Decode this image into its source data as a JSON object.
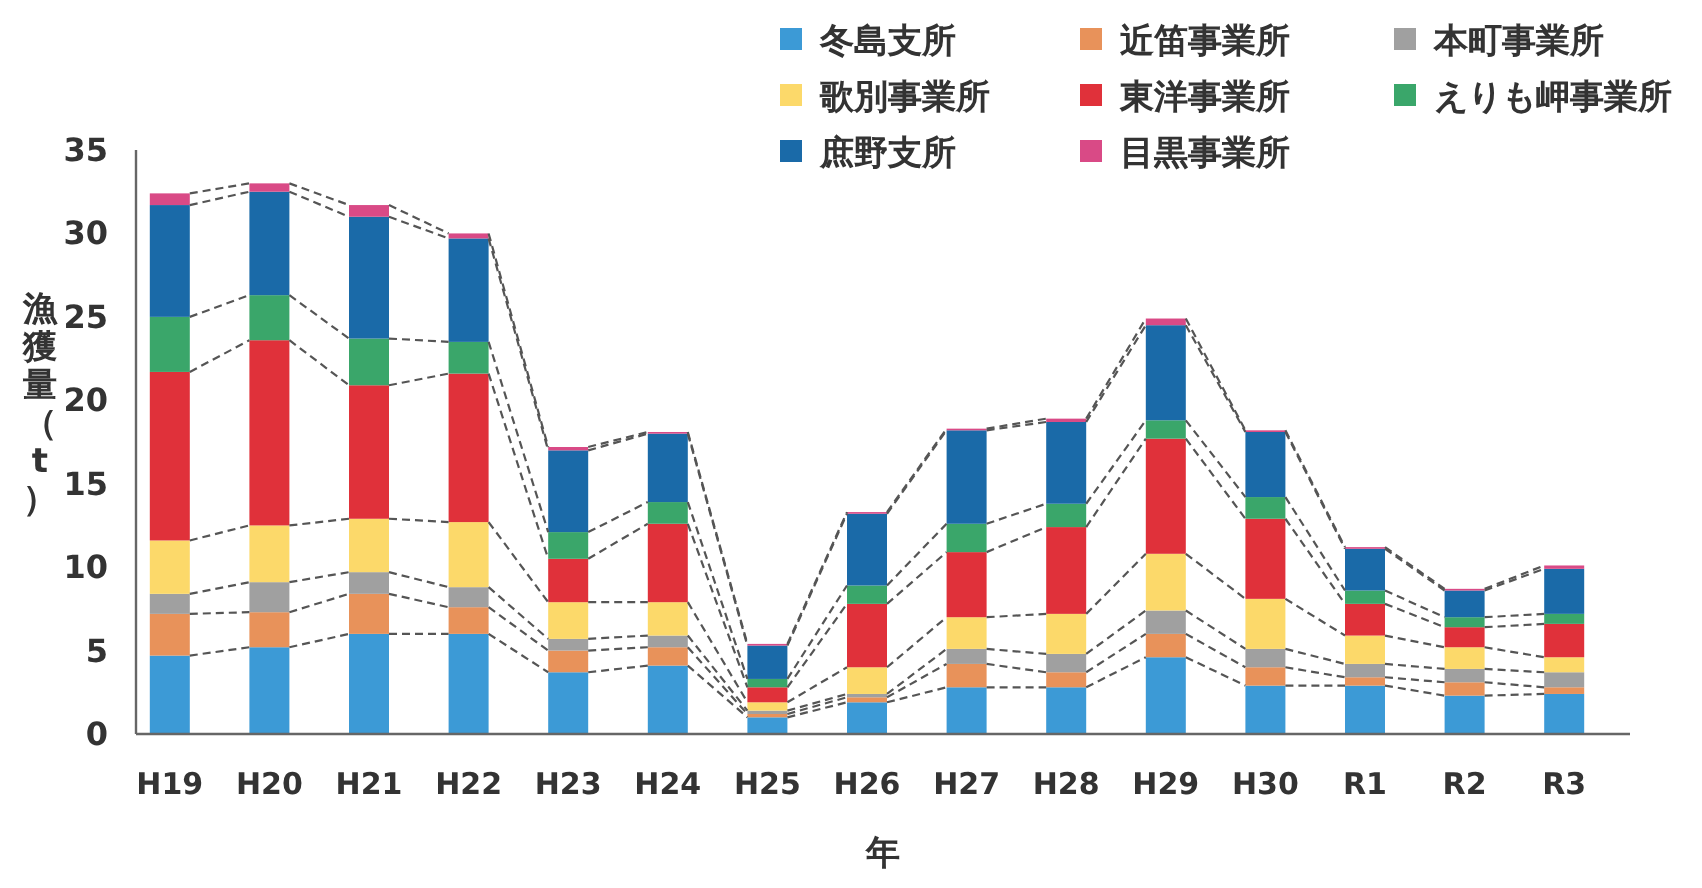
{
  "chart_data": {
    "type": "bar",
    "stacked": true,
    "xlabel": "年",
    "ylabel": "漁獲量（t）",
    "categories": [
      "H19",
      "H20",
      "H21",
      "H22",
      "H23",
      "H24",
      "H25",
      "H26",
      "H27",
      "H28",
      "H29",
      "H30",
      "R1",
      "R2",
      "R3"
    ],
    "series": [
      {
        "name": "冬島支所",
        "color": "#3c9ad6",
        "values": [
          4.7,
          5.2,
          6.0,
          6.0,
          3.7,
          4.1,
          1.0,
          1.9,
          2.8,
          2.8,
          4.6,
          2.9,
          2.9,
          2.3,
          2.4
        ]
      },
      {
        "name": "近笛事業所",
        "color": "#e8925a",
        "values": [
          2.5,
          2.1,
          2.4,
          1.6,
          1.3,
          1.1,
          0.2,
          0.3,
          1.4,
          0.9,
          1.4,
          1.1,
          0.5,
          0.8,
          0.4
        ]
      },
      {
        "name": "本町事業所",
        "color": "#a0a0a0",
        "values": [
          1.2,
          1.8,
          1.3,
          1.2,
          0.7,
          0.7,
          0.2,
          0.2,
          0.9,
          1.1,
          1.4,
          1.1,
          0.8,
          0.8,
          0.9
        ]
      },
      {
        "name": "歌別事業所",
        "color": "#fcd96a",
        "values": [
          3.2,
          3.4,
          3.2,
          3.9,
          2.2,
          2.0,
          0.5,
          1.6,
          1.9,
          2.4,
          3.4,
          3.0,
          1.7,
          1.3,
          0.9
        ]
      },
      {
        "name": "東洋事業所",
        "color": "#e0313a",
        "values": [
          10.1,
          11.1,
          8.0,
          8.9,
          2.6,
          4.7,
          0.9,
          3.8,
          3.9,
          5.2,
          6.9,
          4.8,
          1.9,
          1.2,
          2.0
        ]
      },
      {
        "name": "えりも岬事業所",
        "color": "#3aa66a",
        "values": [
          3.3,
          2.7,
          2.8,
          1.9,
          1.6,
          1.3,
          0.5,
          1.1,
          1.7,
          1.4,
          1.1,
          1.3,
          0.8,
          0.6,
          0.6
        ]
      },
      {
        "name": "庶野支所",
        "color": "#1a6aa8",
        "values": [
          6.7,
          6.2,
          7.3,
          6.2,
          4.9,
          4.1,
          2.0,
          4.3,
          5.6,
          4.9,
          5.7,
          3.9,
          2.5,
          1.6,
          2.7
        ]
      },
      {
        "name": "目黒事業所",
        "color": "#d94a86",
        "values": [
          0.7,
          0.5,
          0.7,
          0.3,
          0.2,
          0.1,
          0.1,
          0.1,
          0.1,
          0.2,
          0.4,
          0.1,
          0.1,
          0.1,
          0.2
        ]
      }
    ],
    "ylim": [
      0,
      35
    ],
    "yticks": [
      0,
      5,
      10,
      15,
      20,
      25,
      30,
      35
    ],
    "grid": false,
    "legend": "top right"
  }
}
